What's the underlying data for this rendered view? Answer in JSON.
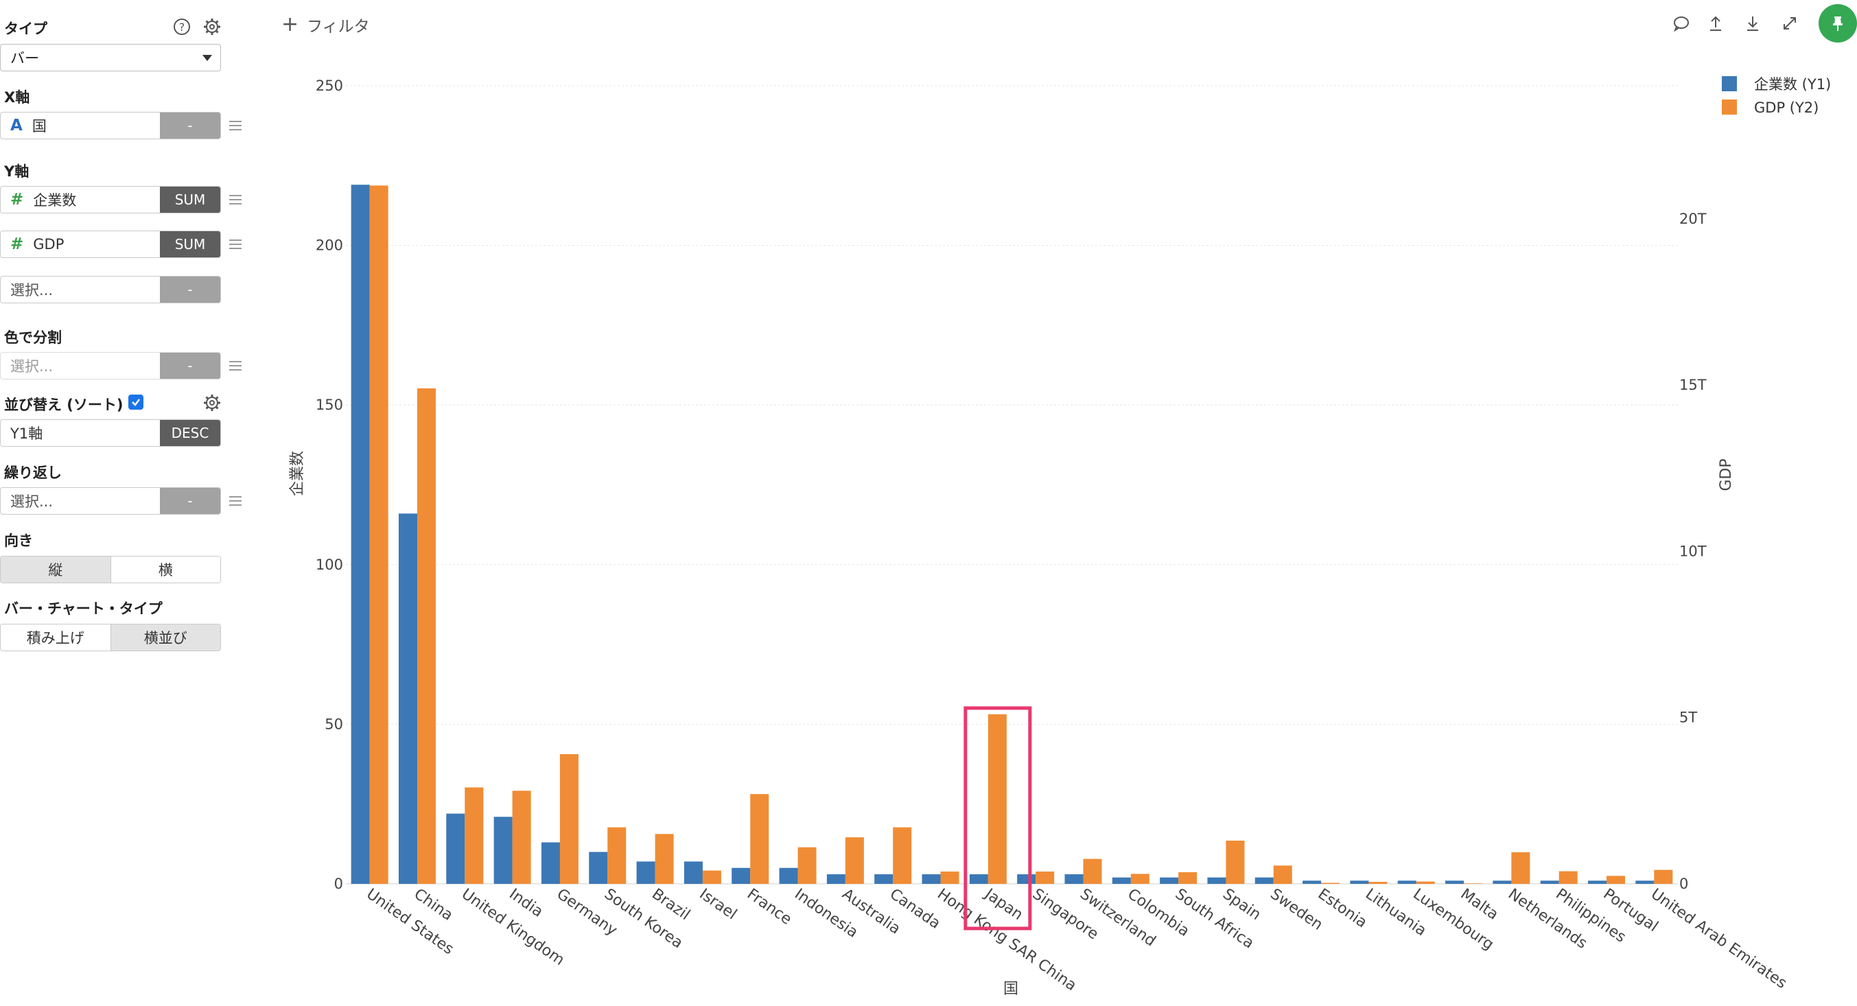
{
  "panel": {
    "type": {
      "label": "タイプ",
      "value": "バー"
    },
    "x_axis": {
      "label": "X軸",
      "field_type": "A",
      "field": "国",
      "agg": "-"
    },
    "y_axis": {
      "label": "Y軸",
      "fields": [
        {
          "field_type": "#",
          "field": "企業数",
          "agg": "SUM"
        },
        {
          "field_type": "#",
          "field": "GDP",
          "agg": "SUM"
        }
      ],
      "empty": {
        "placeholder": "選択...",
        "agg": "-"
      }
    },
    "color_split": {
      "label": "色で分割",
      "placeholder": "選択...",
      "agg": "-"
    },
    "sort": {
      "label": "並び替え (ソート)",
      "field": "Y1軸",
      "order": "DESC"
    },
    "repeat": {
      "label": "繰り返し",
      "placeholder": "選択...",
      "agg": "-"
    },
    "orientation": {
      "label": "向き",
      "options": [
        "縦",
        "横"
      ],
      "active": 0
    },
    "bar_type": {
      "label": "バー・チャート・タイプ",
      "options": [
        "積み上げ",
        "横並び"
      ],
      "active": 1
    }
  },
  "toolbar": {
    "filter_label": "フィルタ"
  },
  "colors": {
    "y1": "#3b78b5",
    "y2": "#f08c35",
    "highlight": "#e8386e",
    "grid": "#e6e6e6"
  },
  "chart_data": {
    "type": "bar",
    "bar_mode": "grouped",
    "xlabel": "国",
    "y1label": "企業数",
    "y2label": "GDP",
    "y1lim": [
      0,
      250
    ],
    "y1ticks": [
      "0",
      "50",
      "100",
      "150",
      "200",
      "250"
    ],
    "y2lim": [
      0,
      24
    ],
    "y2ticks": [
      {
        "value": 0,
        "label": "0"
      },
      {
        "value": 5,
        "label": "5T"
      },
      {
        "value": 10,
        "label": "10T"
      },
      {
        "value": 15,
        "label": "15T"
      },
      {
        "value": 20,
        "label": "20T"
      }
    ],
    "grid": true,
    "legend_position": "top-right",
    "categories": [
      "United States",
      "China",
      "United Kingdom",
      "India",
      "Germany",
      "South Korea",
      "Brazil",
      "Israel",
      "France",
      "Indonesia",
      "Australia",
      "Canada",
      "Hong Kong SAR China",
      "Japan",
      "Singapore",
      "Switzerland",
      "Colombia",
      "South Africa",
      "Spain",
      "Sweden",
      "Estonia",
      "Lithuania",
      "Luxembourg",
      "Malta",
      "Netherlands",
      "Philippines",
      "Portugal",
      "United Arab Emirates"
    ],
    "series": [
      {
        "name": "企業数 (Y1)",
        "axis": "y1",
        "values": [
          219,
          116,
          22,
          21,
          13,
          10,
          7,
          7,
          5,
          5,
          3,
          3,
          3,
          3,
          3,
          3,
          2,
          2,
          2,
          2,
          1,
          1,
          1,
          1,
          1,
          1,
          1,
          1
        ]
      },
      {
        "name": "GDP (Y2)",
        "axis": "y2",
        "values": [
          21,
          14.9,
          2.9,
          2.8,
          3.9,
          1.7,
          1.5,
          0.4,
          2.7,
          1.1,
          1.4,
          1.7,
          0.37,
          5.1,
          0.37,
          0.75,
          0.3,
          0.35,
          1.3,
          0.55,
          0.03,
          0.06,
          0.07,
          0.015,
          0.95,
          0.38,
          0.24,
          0.42
        ]
      }
    ],
    "highlight_category": "Japan"
  }
}
